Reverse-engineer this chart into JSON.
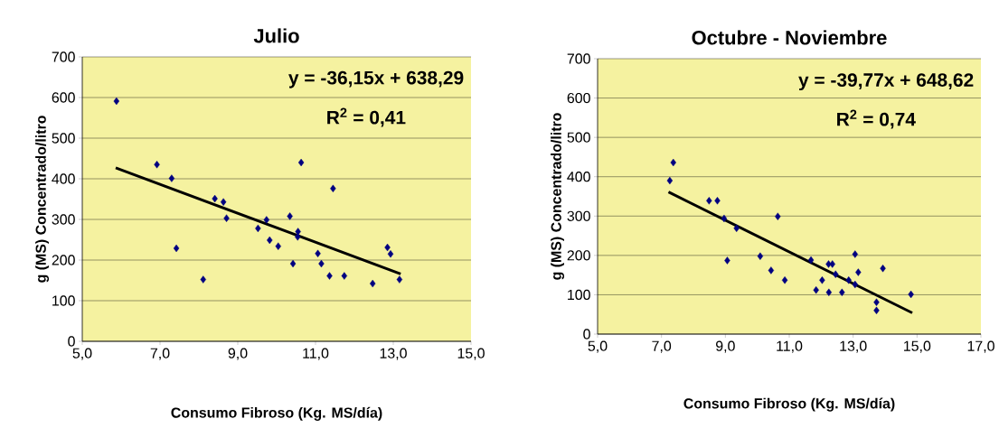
{
  "chart_data": [
    {
      "type": "scatter",
      "title": "Julio",
      "xlabel": "Consumo Fibroso (Kg. MS/día)",
      "ylabel": "g (MS) Concentrado/litro",
      "annotations": [
        "y = -36,15x + 638,29",
        "R$^{2}$ = 0,41"
      ],
      "xlim": [
        5,
        15
      ],
      "xticks": [
        {
          "value": 5,
          "label": "5,0"
        },
        {
          "value": 7,
          "label": "7,0"
        },
        {
          "value": 9,
          "label": "9,0"
        },
        {
          "value": 11,
          "label": "11,0"
        },
        {
          "value": 13,
          "label": "13,0"
        },
        {
          "value": 15,
          "label": "15,0"
        }
      ],
      "ylim": [
        0,
        700
      ],
      "yticks": [
        0,
        100,
        200,
        300,
        400,
        500,
        600,
        700
      ],
      "grid": "y",
      "series": [
        {
          "marker": "diamond",
          "color": "#000080",
          "x": [
            5.88,
            6.92,
            7.3,
            7.42,
            8.11,
            8.41,
            8.63,
            8.71,
            9.52,
            9.74,
            9.82,
            10.04,
            10.34,
            10.42,
            10.54,
            10.55,
            10.63,
            11.06,
            11.15,
            11.45,
            11.36,
            11.74,
            12.47,
            12.85,
            12.93,
            13.16
          ],
          "values": [
            591,
            435,
            401,
            229,
            152,
            351,
            343,
            303,
            278,
            299,
            249,
            234,
            308,
            191,
            257,
            270,
            440,
            216,
            191,
            376,
            161,
            161,
            142,
            231,
            215,
            152
          ]
        },
        {
          "type": "line",
          "marker": "none",
          "color": "#000000",
          "x": [
            5.86,
            13.19
          ],
          "values": [
            427,
            166
          ]
        }
      ]
    },
    {
      "type": "scatter",
      "title": "Octubre - Noviembre",
      "xlabel": "Consumo Fibroso (Kg. MS/día)",
      "ylabel": "g (MS) Concentrado/litro",
      "annotations": [
        "y = -39,77x + 648,62",
        "R$^{2}$ = 0,74"
      ],
      "xlim": [
        5,
        17
      ],
      "xticks": [
        {
          "value": 5,
          "label": "5,0"
        },
        {
          "value": 7,
          "label": "7,0"
        },
        {
          "value": 9,
          "label": "9,0"
        },
        {
          "value": 11,
          "label": "11,0"
        },
        {
          "value": 13,
          "label": "13,0"
        },
        {
          "value": 15,
          "label": "15,0"
        },
        {
          "value": 17,
          "label": "17,0"
        }
      ],
      "ylim": [
        0,
        700
      ],
      "yticks": [
        0,
        100,
        200,
        300,
        400,
        500,
        600,
        700
      ],
      "grid": "y",
      "series": [
        {
          "marker": "diamond",
          "color": "#000080",
          "x": [
            7.26,
            7.37,
            8.49,
            8.75,
            8.96,
            9.06,
            9.35,
            10.09,
            10.43,
            10.64,
            10.86,
            11.68,
            11.84,
            12.03,
            12.23,
            12.35,
            12.24,
            12.45,
            12.65,
            12.86,
            13.06,
            13.06,
            13.16,
            13.73,
            13.73,
            13.93,
            14.81
          ],
          "values": [
            390,
            436,
            339,
            339,
            294,
            187,
            269,
            198,
            162,
            299,
            137,
            188,
            112,
            137,
            178,
            178,
            106,
            152,
            106,
            137,
            203,
            126,
            157,
            81,
            60,
            167,
            101
          ]
        },
        {
          "type": "line",
          "marker": "none",
          "color": "#000000",
          "x": [
            7.22,
            14.85
          ],
          "values": [
            361,
            54
          ]
        }
      ]
    }
  ]
}
